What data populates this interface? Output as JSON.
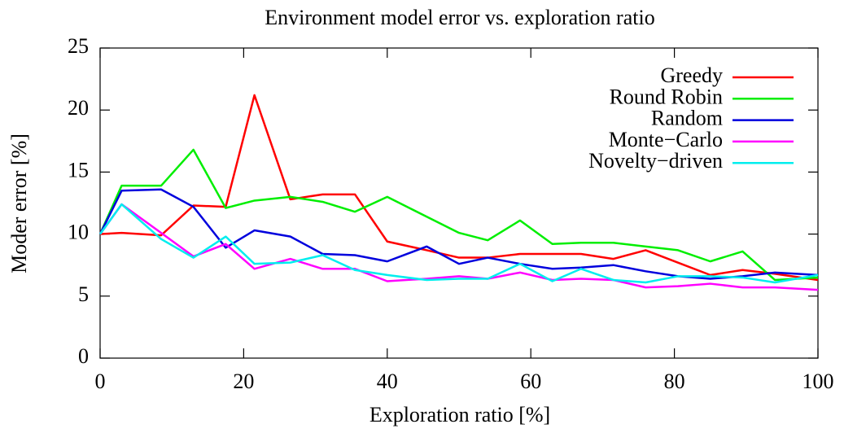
{
  "chart_data": {
    "type": "line",
    "title": "Environment model error vs. exploration ratio",
    "x_label": "Exploration ratio [%]",
    "y_label": "Moder error [%]",
    "x": [
      0,
      3,
      8.5,
      13,
      17.5,
      21.5,
      26.5,
      31,
      35.5,
      40,
      45.5,
      50,
      54,
      58.5,
      63,
      67,
      71.5,
      76,
      80.5,
      85,
      89.5,
      94,
      100
    ],
    "series": [
      {
        "name": "Greedy",
        "color": "#ff0000",
        "values": [
          10,
          10.1,
          9.9,
          12.3,
          12.2,
          21.2,
          12.8,
          13.2,
          13.2,
          9.4,
          8.7,
          8.1,
          8.1,
          8.4,
          8.4,
          8.4,
          8.0,
          8.7,
          7.7,
          6.7,
          7.1,
          6.8,
          6.3
        ]
      },
      {
        "name": "Round Robin",
        "color": "#00ee00",
        "values": [
          10,
          13.9,
          13.9,
          16.8,
          12.1,
          12.7,
          13.0,
          12.6,
          11.8,
          13.0,
          11.4,
          10.1,
          9.5,
          11.1,
          9.2,
          9.3,
          9.3,
          9.0,
          8.7,
          7.8,
          8.6,
          6.3,
          6.5
        ]
      },
      {
        "name": "Random",
        "color": "#0000dd",
        "values": [
          10,
          13.5,
          13.6,
          12.2,
          8.9,
          10.3,
          9.8,
          8.4,
          8.3,
          7.8,
          9.0,
          7.6,
          8.1,
          7.6,
          7.2,
          7.3,
          7.5,
          7.0,
          6.6,
          6.4,
          6.6,
          6.9,
          6.7
        ]
      },
      {
        "name": "Monte−Carlo",
        "color": "#ff00ff",
        "values": [
          10,
          12.4,
          10.1,
          8.2,
          9.2,
          7.2,
          8.0,
          7.2,
          7.2,
          6.2,
          6.4,
          6.6,
          6.4,
          6.9,
          6.3,
          6.4,
          6.3,
          5.7,
          5.8,
          6.0,
          5.7,
          5.7,
          5.5
        ]
      },
      {
        "name": "Novelty−driven",
        "color": "#00eeee",
        "values": [
          10,
          12.4,
          9.6,
          8.1,
          9.8,
          7.6,
          7.7,
          8.3,
          7.1,
          6.7,
          6.3,
          6.4,
          6.4,
          7.6,
          6.2,
          7.2,
          6.3,
          6.1,
          6.6,
          6.6,
          6.5,
          6.1,
          6.7
        ]
      }
    ],
    "xlim": [
      0,
      100
    ],
    "xticks": [
      0,
      20,
      40,
      60,
      80,
      100
    ],
    "ylim": [
      0,
      25
    ],
    "yticks": [
      0,
      5,
      10,
      15,
      20,
      25
    ],
    "legend": "top-right"
  }
}
